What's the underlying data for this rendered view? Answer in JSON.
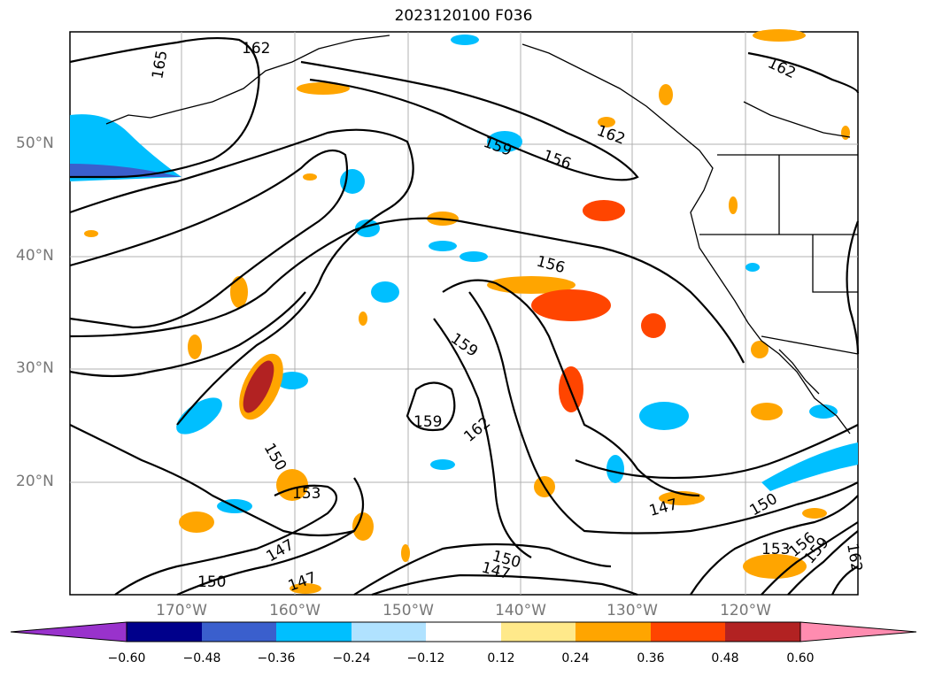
{
  "title": "2023120100 F036",
  "map": {
    "lat_labels": [
      "50°N",
      "40°N",
      "30°N",
      "20°N"
    ],
    "lon_labels": [
      "170°W",
      "160°W",
      "150°W",
      "140°W",
      "130°W",
      "120°W"
    ],
    "contour_labels": [
      "162",
      "165",
      "159",
      "156",
      "162",
      "156",
      "159",
      "159",
      "162",
      "150",
      "153",
      "147",
      "150",
      "147",
      "150",
      "147",
      "153",
      "156",
      "159",
      "162",
      "150"
    ]
  },
  "colorbar": {
    "ticks": [
      "−0.60",
      "−0.48",
      "−0.36",
      "−0.24",
      "−0.12",
      "0.12",
      "0.24",
      "0.36",
      "0.48",
      "0.60"
    ],
    "colors": [
      "#9932cc",
      "#00008b",
      "#3a5fcd",
      "#00bfff",
      "#b0e2ff",
      "#ffffff",
      "#ffe98a",
      "#ffa500",
      "#ff4500",
      "#b22222",
      "#ff8cb0"
    ]
  }
}
